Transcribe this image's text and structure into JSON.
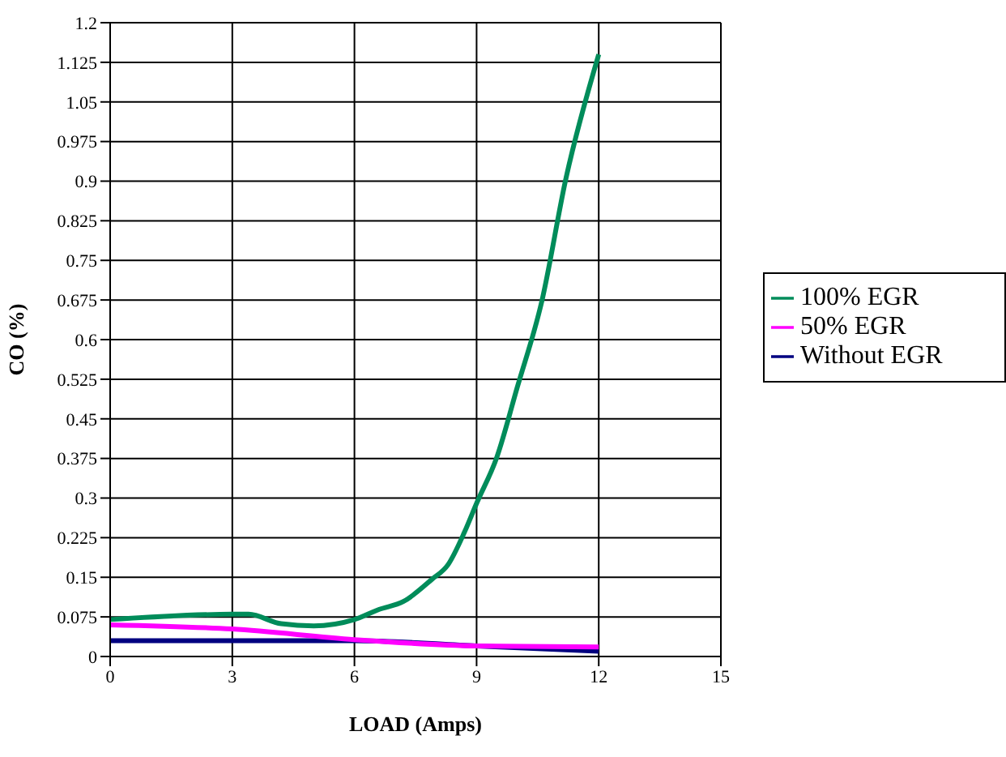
{
  "chart_data": {
    "type": "line",
    "xlabel": "LOAD (Amps)",
    "ylabel": "CO (%)",
    "xlim": [
      0,
      15
    ],
    "xticks": [
      0,
      3,
      6,
      9,
      12,
      15
    ],
    "ylim": [
      0,
      1.2
    ],
    "yticks": [
      0,
      0.075,
      0.15,
      0.225,
      0.3,
      0.375,
      0.45,
      0.525,
      0.6,
      0.675,
      0.75,
      0.825,
      0.9,
      0.975,
      1.05,
      1.125,
      1.2
    ],
    "grid": true,
    "legend": "right",
    "marker": "none",
    "line_style": "solid",
    "series": [
      {
        "name": "Without EGR",
        "color": "#000080",
        "x": [
          0,
          3,
          6,
          9,
          12
        ],
        "values": [
          0.03,
          0.03,
          0.03,
          0.02,
          0.01
        ]
      },
      {
        "name": "50% EGR",
        "color": "#ff00ff",
        "x": [
          0,
          3,
          6,
          9,
          12
        ],
        "values": [
          0.06,
          0.052,
          0.032,
          0.02,
          0.018
        ]
      },
      {
        "name": "100% EGR",
        "color": "#008c5a",
        "x": [
          0,
          3,
          3.4,
          4.2,
          5,
          6,
          6.6,
          7.2,
          7.9,
          8.3,
          8.7,
          9,
          9.5,
          10,
          10.6,
          11.2,
          12
        ],
        "values": [
          0.07,
          0.08,
          0.08,
          0.062,
          0.058,
          0.07,
          0.089,
          0.104,
          0.146,
          0.174,
          0.235,
          0.29,
          0.378,
          0.51,
          0.672,
          0.907,
          1.14
        ]
      }
    ]
  }
}
